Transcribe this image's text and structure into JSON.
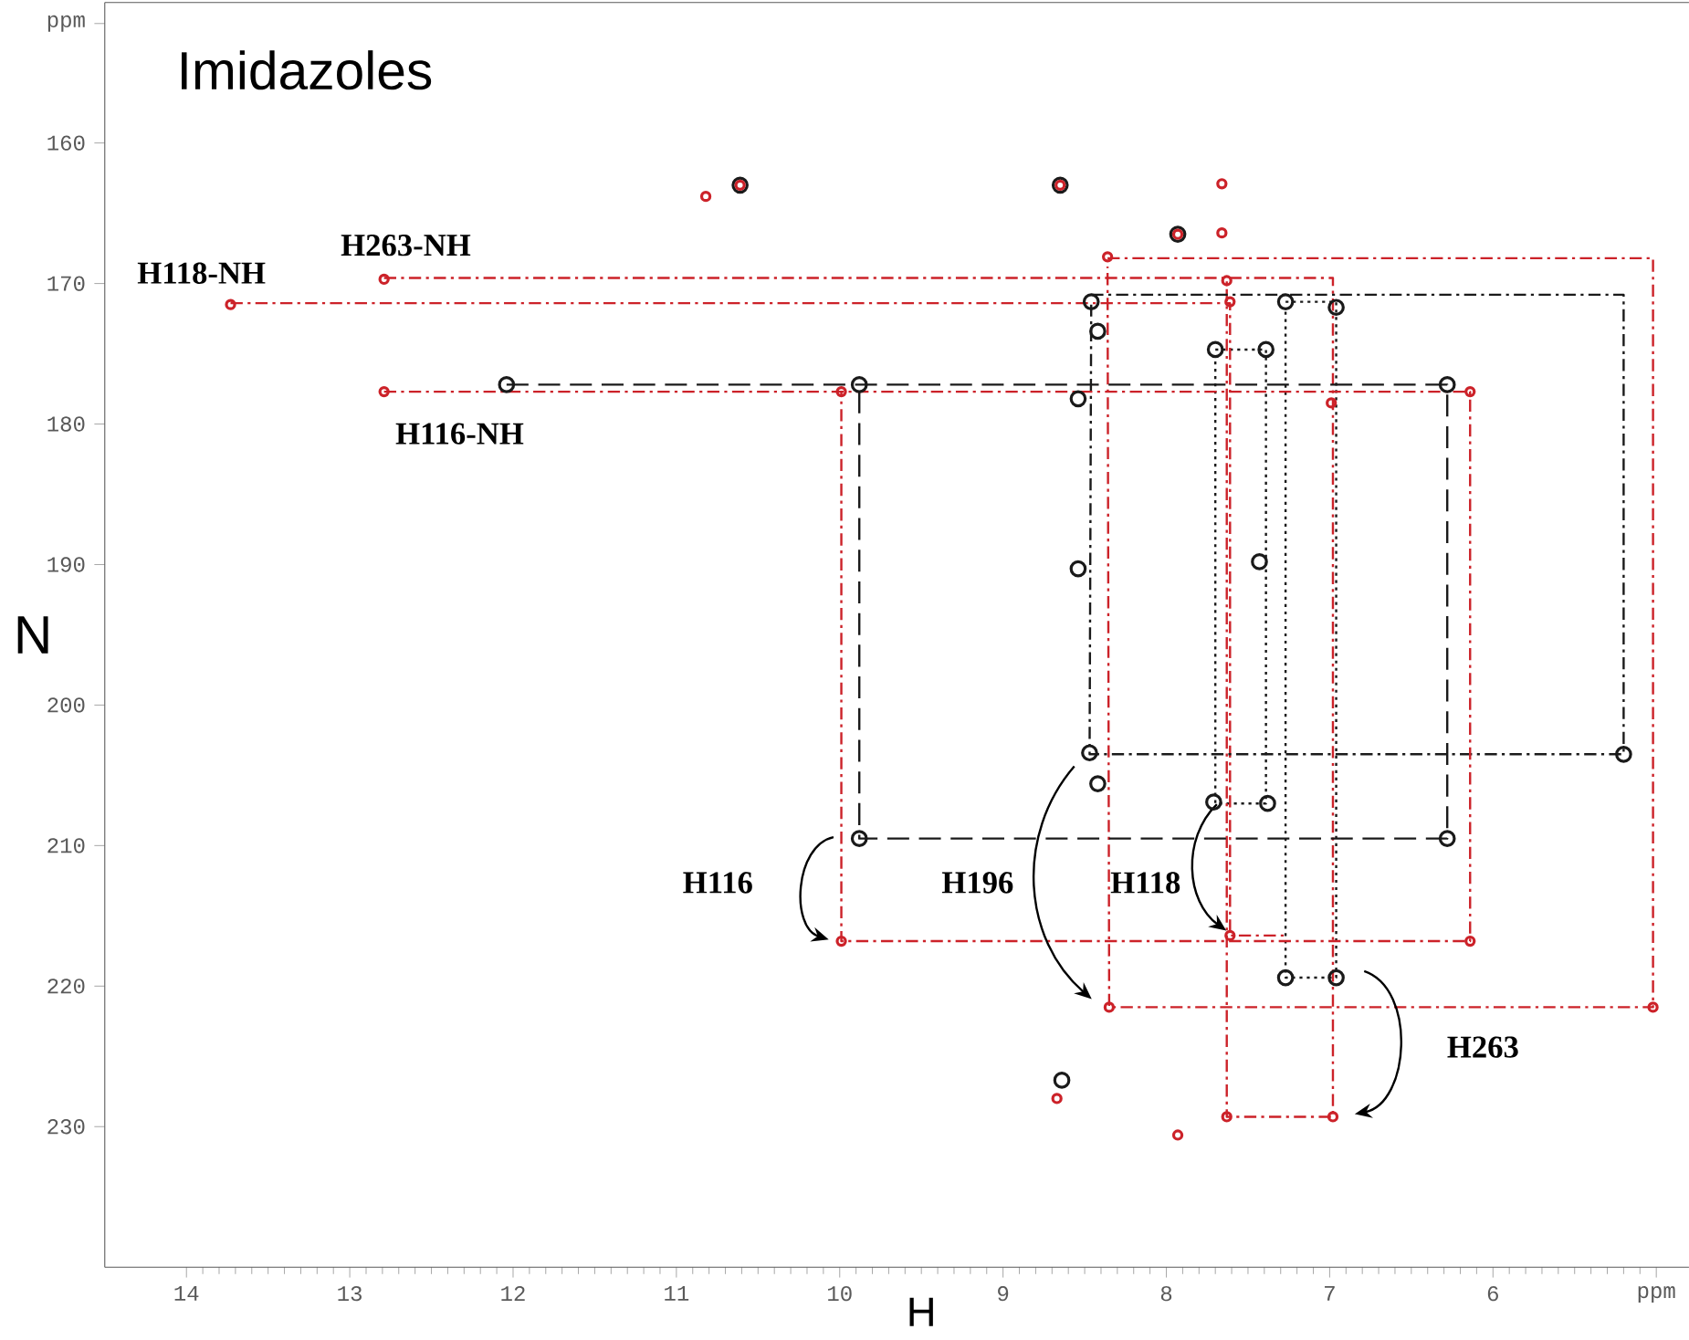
{
  "chart_data": {
    "type": "scatter",
    "title": "Imidazoles",
    "xlabel": "H",
    "ylabel": "N",
    "marker": "circle",
    "xlim": [
      14.5,
      4.8
    ],
    "ylim": [
      240,
      150
    ],
    "xticks": [
      14,
      13,
      12,
      11,
      10,
      9,
      8,
      7,
      6,
      {
        "value": 5,
        "label": "ppm"
      }
    ],
    "yticks": [
      {
        "value": 151.5,
        "label": "ppm"
      },
      160,
      170,
      180,
      190,
      200,
      210,
      220,
      230
    ],
    "series": [
      {
        "type": "line",
        "color": "#1a1a1a",
        "line_style": "dashed",
        "marker": "none",
        "x": [
          12.04,
          6.28,
          6.28,
          9.88,
          9.88
        ],
        "values": [
          177.2,
          177.2,
          209.5,
          209.5,
          177.2
        ]
      },
      {
        "type": "line",
        "color": "#cc2229",
        "line_style": "dashdot",
        "marker": "none",
        "x": [
          12.79,
          6.14,
          6.14,
          9.99,
          9.99
        ],
        "values": [
          177.7,
          177.7,
          216.8,
          216.8,
          177.7
        ]
      },
      {
        "type": "line",
        "color": "#1a1a1a",
        "line_style": "dashdot",
        "marker": "none",
        "x": [
          8.46,
          5.2,
          5.2,
          8.47,
          8.46
        ],
        "values": [
          170.8,
          170.8,
          203.5,
          203.5,
          171.5
        ]
      },
      {
        "type": "line",
        "color": "#cc2229",
        "line_style": "dashdot",
        "marker": "none",
        "x": [
          8.36,
          5.02,
          5.02,
          8.35,
          8.36
        ],
        "values": [
          168.2,
          168.2,
          221.5,
          221.5,
          168.8
        ]
      },
      {
        "type": "line",
        "color": "#cc2229",
        "line_style": "dashdot",
        "marker": "none",
        "x": [
          12.79,
          6.98,
          6.98,
          7.63,
          7.63
        ],
        "values": [
          169.6,
          169.6,
          229.3,
          229.3,
          169.6
        ]
      },
      {
        "type": "line",
        "color": "#cc2229",
        "line_style": "dashdot",
        "marker": "none",
        "x": [
          13.73,
          7.61,
          7.61,
          7.27
        ],
        "values": [
          171.4,
          171.4,
          216.4,
          216.4
        ]
      },
      {
        "type": "line",
        "color": "#1a1a1a",
        "line_style": "dotted",
        "marker": "none",
        "x": [
          7.7,
          7.39,
          7.39,
          7.7,
          7.7
        ],
        "values": [
          174.7,
          174.7,
          207.0,
          207.0,
          175.3
        ]
      },
      {
        "type": "line",
        "color": "#1a1a1a",
        "line_style": "dotted",
        "marker": "none",
        "x": [
          7.27,
          6.96,
          6.96,
          7.27,
          7.27
        ],
        "values": [
          171.3,
          171.3,
          219.4,
          219.4,
          171.9
        ]
      },
      {
        "color": "#cc2229",
        "x": [
          10.82,
          10.61,
          8.65,
          7.66,
          7.93,
          7.66,
          8.36,
          7.63,
          12.79,
          13.73,
          7.61,
          12.79,
          9.99,
          6.99,
          6.14,
          9.99,
          7.61,
          6.14,
          8.35,
          5.02,
          8.67,
          7.63,
          6.98,
          7.93
        ],
        "values": [
          163.8,
          163.0,
          163.0,
          162.9,
          166.5,
          166.4,
          168.1,
          169.8,
          169.7,
          171.5,
          171.3,
          177.7,
          177.7,
          178.5,
          177.7,
          216.8,
          216.4,
          216.8,
          221.5,
          221.5,
          228.0,
          229.3,
          229.3,
          230.6
        ]
      },
      {
        "color": "#1a1a1a",
        "x": [
          10.61,
          8.65,
          7.93,
          8.46,
          7.27,
          6.96,
          8.42,
          7.7,
          7.39,
          9.88,
          12.04,
          8.54,
          6.28,
          8.54,
          7.43,
          8.47,
          8.42,
          5.2,
          7.71,
          7.38,
          9.88,
          6.28,
          7.27,
          6.96,
          8.64
        ],
        "values": [
          163.0,
          163.0,
          166.5,
          171.3,
          171.3,
          171.7,
          173.4,
          174.7,
          174.7,
          177.2,
          177.2,
          178.2,
          177.2,
          190.3,
          189.8,
          203.4,
          205.6,
          203.5,
          206.9,
          207.0,
          209.5,
          209.5,
          219.4,
          219.4,
          226.7
        ]
      }
    ],
    "annotations": [
      "H118-NH",
      "H263-NH",
      "H116-NH",
      "H116",
      "H196",
      "H118",
      "H263"
    ]
  }
}
